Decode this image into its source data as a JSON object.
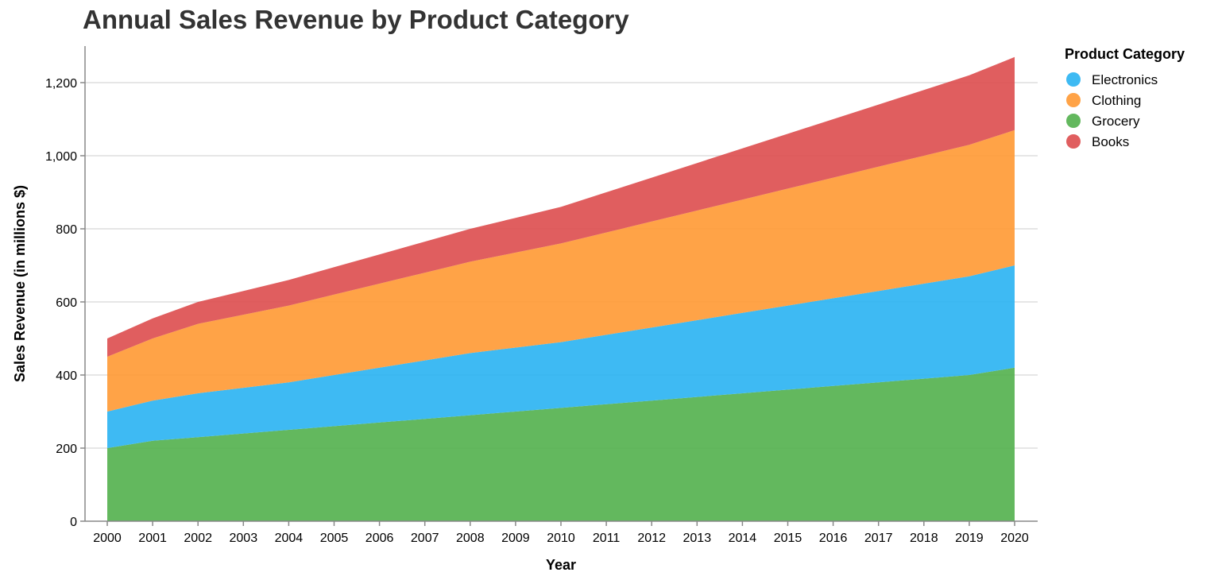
{
  "chart_data": {
    "type": "area",
    "stacked": true,
    "title": "Annual Sales Revenue by Product Category",
    "xlabel": "Year",
    "ylabel": "Sales Revenue (in millions $)",
    "x": [
      "2000",
      "2001",
      "2002",
      "2003",
      "2004",
      "2005",
      "2006",
      "2007",
      "2008",
      "2009",
      "2010",
      "2011",
      "2012",
      "2013",
      "2014",
      "2015",
      "2016",
      "2017",
      "2018",
      "2019",
      "2020"
    ],
    "ylim": [
      0,
      1300
    ],
    "y_ticks": [
      {
        "value": 0,
        "label": "0"
      },
      {
        "value": 200,
        "label": "200"
      },
      {
        "value": 400,
        "label": "400"
      },
      {
        "value": 600,
        "label": "600"
      },
      {
        "value": 800,
        "label": "800"
      },
      {
        "value": 1000,
        "label": "1,000"
      },
      {
        "value": 1200,
        "label": "1,200"
      }
    ],
    "grid": true,
    "legend": {
      "title": "Product Category",
      "placement": "right",
      "entries": [
        "Electronics",
        "Clothing",
        "Grocery",
        "Books"
      ]
    },
    "stack_order_bottom_to_top": [
      "Grocery",
      "Electronics",
      "Clothing",
      "Books"
    ],
    "series": [
      {
        "name": "Electronics",
        "color": "#29b2f2",
        "values": [
          100,
          110,
          120,
          125,
          130,
          140,
          150,
          160,
          170,
          175,
          180,
          190,
          200,
          210,
          220,
          230,
          240,
          250,
          260,
          270,
          280
        ]
      },
      {
        "name": "Clothing",
        "color": "#ff9933",
        "values": [
          150,
          170,
          190,
          200,
          210,
          220,
          230,
          240,
          250,
          260,
          270,
          280,
          290,
          300,
          310,
          320,
          330,
          340,
          350,
          360,
          370
        ]
      },
      {
        "name": "Grocery",
        "color": "#52b04d",
        "values": [
          200,
          220,
          230,
          240,
          250,
          260,
          270,
          280,
          290,
          300,
          310,
          320,
          330,
          340,
          350,
          360,
          370,
          380,
          390,
          400,
          420
        ]
      },
      {
        "name": "Books",
        "color": "#dd4c4e",
        "values": [
          50,
          55,
          60,
          65,
          70,
          75,
          80,
          85,
          90,
          95,
          100,
          110,
          120,
          130,
          140,
          150,
          160,
          170,
          180,
          190,
          200
        ]
      }
    ]
  }
}
